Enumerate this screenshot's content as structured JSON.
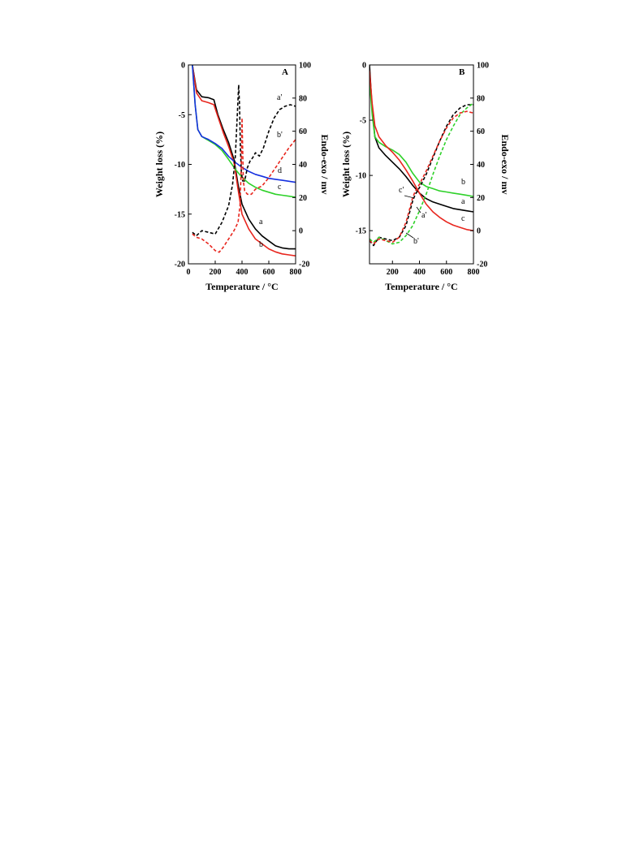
{
  "chart_data": [
    {
      "type": "line",
      "panel_label": "A",
      "xlabel": "Temperature / °C",
      "ylabel_left": "Weight loss (%)",
      "ylabel_right": "Endo-exo / mv",
      "xlim": [
        0,
        800
      ],
      "ylim_left": [
        -20,
        0
      ],
      "ylim_right": [
        -20,
        100
      ],
      "xticks": [
        0,
        200,
        400,
        600,
        800
      ],
      "yticks_left": [
        0,
        -5,
        -10,
        -15,
        -20
      ],
      "yticks_right": [
        100,
        80,
        60,
        40,
        20,
        0,
        -20
      ],
      "series": [
        {
          "name": "a",
          "axis": "left",
          "color": "#000000",
          "dash": false,
          "x": [
            30,
            60,
            100,
            150,
            190,
            220,
            260,
            300,
            340,
            370,
            400,
            450,
            500,
            550,
            600,
            650,
            700,
            750,
            800
          ],
          "y": [
            0,
            -2.5,
            -3.2,
            -3.3,
            -3.5,
            -5,
            -6.5,
            -7.8,
            -9.5,
            -12,
            -14,
            -15.5,
            -16.5,
            -17.2,
            -17.7,
            -18.2,
            -18.4,
            -18.5,
            -18.5
          ]
        },
        {
          "name": "b",
          "axis": "left",
          "color": "#e8261e",
          "dash": false,
          "x": [
            30,
            60,
            100,
            150,
            190,
            220,
            260,
            300,
            340,
            370,
            400,
            450,
            500,
            550,
            600,
            650,
            700,
            750,
            800
          ],
          "y": [
            0,
            -2.8,
            -3.6,
            -3.8,
            -4,
            -5.2,
            -6.8,
            -8.2,
            -9.8,
            -12.5,
            -15,
            -16.5,
            -17.5,
            -18,
            -18.5,
            -18.8,
            -19,
            -19.1,
            -19.2
          ]
        },
        {
          "name": "c",
          "axis": "left",
          "color": "#2fd12a",
          "dash": false,
          "x": [
            30,
            50,
            70,
            100,
            150,
            200,
            250,
            300,
            350,
            400,
            450,
            500,
            550,
            600,
            650,
            700,
            750,
            800
          ],
          "y": [
            0,
            -4,
            -6.5,
            -7.2,
            -7.6,
            -8,
            -8.6,
            -9.5,
            -10.5,
            -11.3,
            -11.9,
            -12.3,
            -12.6,
            -12.8,
            -13,
            -13.1,
            -13.2,
            -13.3
          ]
        },
        {
          "name": "d",
          "axis": "left",
          "color": "#1530e0",
          "dash": false,
          "x": [
            30,
            50,
            70,
            100,
            150,
            200,
            250,
            300,
            350,
            400,
            450,
            500,
            550,
            600,
            650,
            700,
            750,
            800
          ],
          "y": [
            0,
            -4,
            -6.5,
            -7.2,
            -7.5,
            -7.9,
            -8.4,
            -9.2,
            -9.8,
            -10.3,
            -10.7,
            -11,
            -11.2,
            -11.4,
            -11.5,
            -11.6,
            -11.7,
            -11.8
          ]
        },
        {
          "name": "a'",
          "axis": "right",
          "color": "#000000",
          "dash": true,
          "x": [
            30,
            60,
            100,
            150,
            200,
            250,
            300,
            330,
            350,
            365,
            375,
            382,
            388,
            395,
            405,
            420,
            440,
            460,
            480,
            500,
            530,
            560,
            600,
            640,
            680,
            720,
            760,
            800
          ],
          "y": [
            -1,
            -3,
            0,
            -1,
            -2,
            5,
            15,
            28,
            45,
            70,
            88,
            75,
            50,
            35,
            30,
            30,
            38,
            42,
            44,
            47,
            45,
            50,
            60,
            68,
            73,
            75,
            76,
            75
          ]
        },
        {
          "name": "b'",
          "axis": "right",
          "color": "#e8261e",
          "dash": true,
          "x": [
            30,
            60,
            100,
            150,
            200,
            230,
            260,
            300,
            340,
            370,
            385,
            395,
            400,
            405,
            410,
            420,
            440,
            470,
            500,
            550,
            600,
            650,
            700,
            750,
            800
          ],
          "y": [
            -2,
            -4,
            -5,
            -8,
            -12,
            -13,
            -10,
            -5,
            0,
            5,
            15,
            40,
            68,
            50,
            30,
            24,
            22,
            22,
            25,
            27,
            32,
            38,
            44,
            50,
            55
          ]
        }
      ],
      "annotations": [
        "a'",
        "b'",
        "d",
        "c",
        "a",
        "b"
      ]
    },
    {
      "type": "line",
      "panel_label": "B",
      "xlabel": "Temperature / °C",
      "ylabel_left": "Weight loss (%)",
      "ylabel_right": "Endo-exo / mv",
      "xlim": [
        30,
        800
      ],
      "ylim_left": [
        -18,
        0
      ],
      "ylim_right": [
        -20,
        100
      ],
      "xticks": [
        200,
        400,
        600,
        800
      ],
      "yticks_left": [
        0,
        -5,
        -10,
        -15
      ],
      "yticks_right": [
        100,
        80,
        60,
        40,
        20,
        0,
        -20
      ],
      "series": [
        {
          "name": "a",
          "axis": "left",
          "color": "#000000",
          "dash": false,
          "x": [
            30,
            50,
            70,
            100,
            150,
            200,
            250,
            300,
            350,
            400,
            450,
            500,
            550,
            600,
            650,
            700,
            750,
            800
          ],
          "y": [
            0,
            -4,
            -6.5,
            -7.5,
            -8.2,
            -8.8,
            -9.4,
            -10.1,
            -10.9,
            -11.6,
            -12.1,
            -12.4,
            -12.6,
            -12.8,
            -13,
            -13.1,
            -13.2,
            -13.3
          ]
        },
        {
          "name": "b",
          "axis": "left",
          "color": "#2fd12a",
          "dash": false,
          "x": [
            30,
            50,
            70,
            100,
            150,
            200,
            250,
            300,
            350,
            400,
            450,
            500,
            550,
            600,
            650,
            700,
            750,
            800
          ],
          "y": [
            -1.5,
            -4.5,
            -6.5,
            -7,
            -7.4,
            -7.7,
            -8.1,
            -8.8,
            -9.8,
            -10.6,
            -11,
            -11.2,
            -11.4,
            -11.5,
            -11.6,
            -11.7,
            -11.8,
            -11.9
          ]
        },
        {
          "name": "c",
          "axis": "left",
          "color": "#e8261e",
          "dash": false,
          "x": [
            30,
            50,
            70,
            100,
            150,
            200,
            250,
            300,
            350,
            400,
            450,
            500,
            550,
            600,
            650,
            700,
            750,
            800
          ],
          "y": [
            -0.5,
            -3.5,
            -5.5,
            -6.5,
            -7.3,
            -7.9,
            -8.6,
            -9.5,
            -10.5,
            -11.6,
            -12.6,
            -13.3,
            -13.8,
            -14.2,
            -14.5,
            -14.7,
            -14.9,
            -15
          ]
        },
        {
          "name": "a'",
          "axis": "right",
          "color": "#000000",
          "dash": true,
          "x": [
            30,
            60,
            100,
            150,
            200,
            250,
            300,
            330,
            350,
            370,
            400,
            450,
            500,
            550,
            600,
            650,
            700,
            750,
            800
          ],
          "y": [
            -6,
            -9,
            -4,
            -5,
            -6,
            -4,
            3,
            12,
            18,
            22,
            26,
            34,
            44,
            54,
            63,
            70,
            74,
            76,
            76
          ]
        },
        {
          "name": "b'",
          "axis": "right",
          "color": "#2fd12a",
          "dash": true,
          "x": [
            30,
            60,
            100,
            150,
            200,
            250,
            300,
            350,
            400,
            450,
            500,
            550,
            600,
            650,
            700,
            750,
            800
          ],
          "y": [
            -5,
            -7,
            -4,
            -6,
            -8,
            -7,
            -3,
            3,
            12,
            22,
            34,
            45,
            55,
            63,
            70,
            74,
            77
          ]
        },
        {
          "name": "c'",
          "axis": "right",
          "color": "#e8261e",
          "dash": true,
          "x": [
            30,
            60,
            100,
            150,
            200,
            250,
            300,
            330,
            350,
            370,
            400,
            450,
            500,
            550,
            600,
            650,
            700,
            750,
            800
          ],
          "y": [
            -6,
            -8,
            -5,
            -6,
            -7,
            -4,
            5,
            14,
            20,
            24,
            28,
            36,
            45,
            54,
            62,
            68,
            71,
            72,
            71
          ]
        }
      ],
      "annotations": [
        "b",
        "a",
        "c",
        "c'",
        "a'",
        "b'"
      ]
    }
  ]
}
